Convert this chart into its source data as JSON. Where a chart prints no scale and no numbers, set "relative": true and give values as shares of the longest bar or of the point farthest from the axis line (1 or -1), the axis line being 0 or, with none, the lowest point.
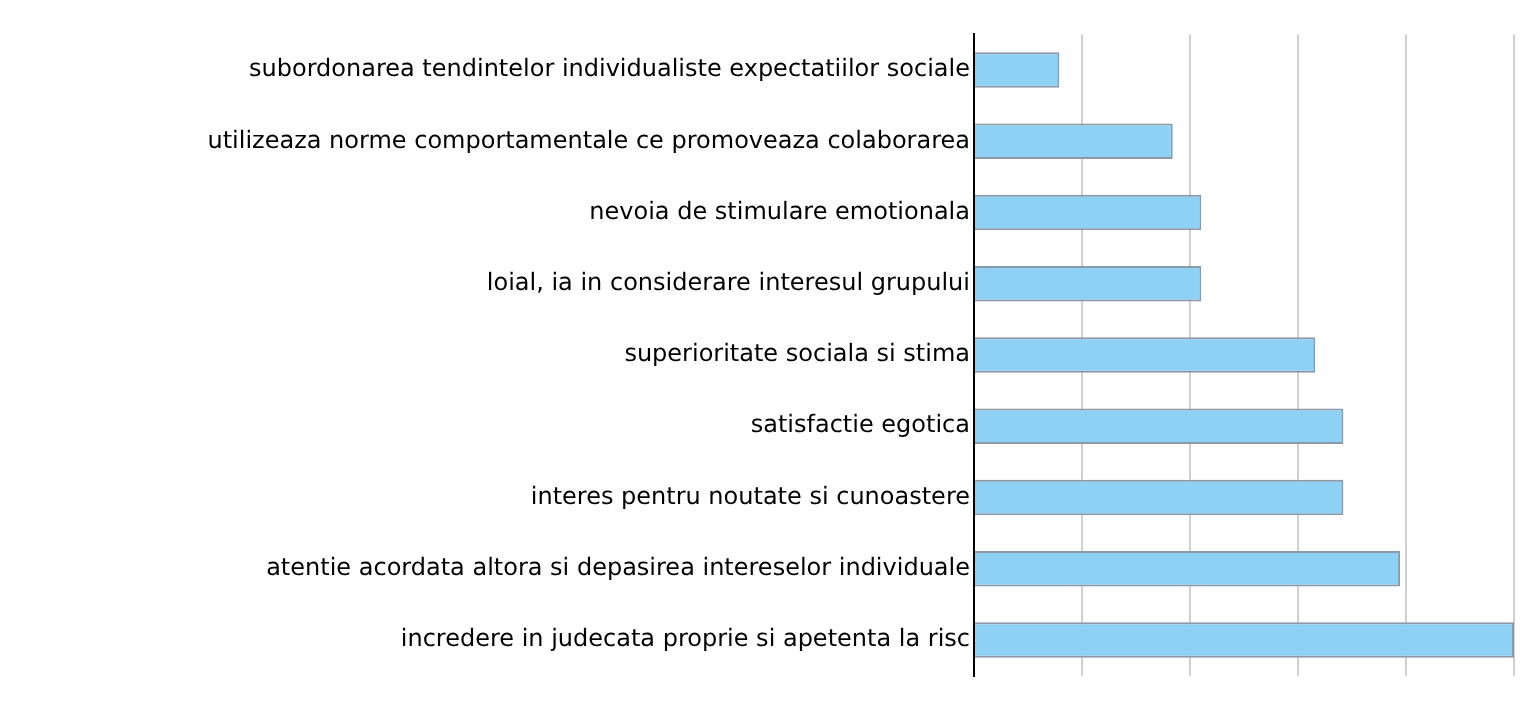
{
  "chart_data": {
    "type": "bar",
    "orientation": "horizontal",
    "relative": true,
    "grid": "x",
    "legend": false,
    "categories": [
      "subordonarea tendintelor individualiste expectatiilor sociale",
      "utilizeaza norme comportamentale ce promoveaza colaborarea",
      "nevoia de stimulare emotionala",
      "loial, ia in considerare interesul grupului",
      "superioritate sociala si stima",
      "satisfactie egotica",
      "interes pentru noutate si cunoastere",
      "atentie acordata altora si depasirea intereselor individuale",
      "incredere in judecata proprie si apetenta la risc"
    ],
    "values": [
      0.158,
      0.368,
      0.421,
      0.421,
      0.632,
      0.684,
      0.684,
      0.789,
      1
    ],
    "color": "#8fd0f5"
  }
}
